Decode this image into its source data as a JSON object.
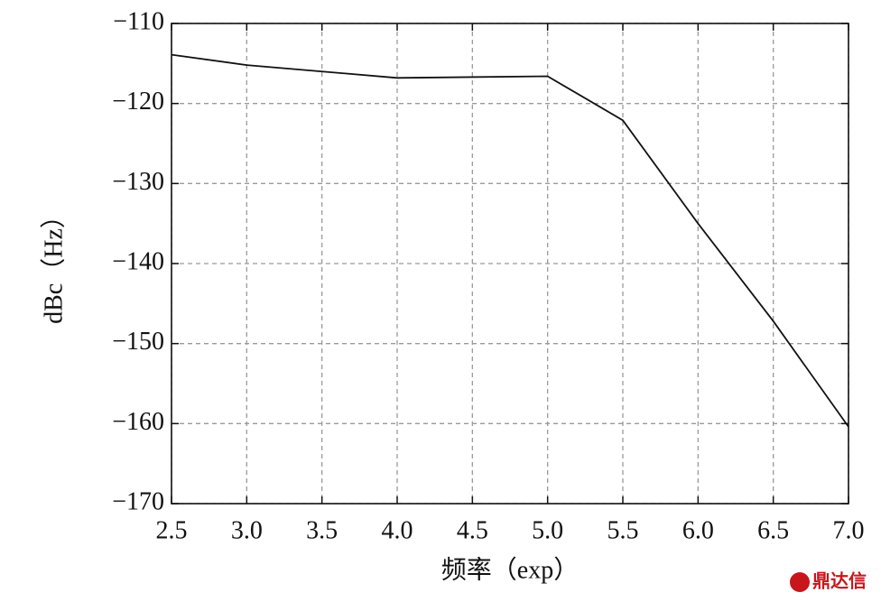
{
  "chart_data": {
    "type": "line",
    "xlabel": "频率（exp）",
    "ylabel": "dBc（Hz）",
    "watermark": "鼎达信",
    "x": [
      2.5,
      3.0,
      4.0,
      5.0,
      5.5,
      6.0,
      6.5,
      7.0
    ],
    "series": [
      {
        "color": "#111111",
        "values": [
          -113.9,
          -115.2,
          -116.8,
          -116.6,
          -122.1,
          -135.0,
          -147.2,
          -160.4
        ]
      }
    ],
    "xlim": [
      2.5,
      7.0
    ],
    "xticks": [
      2.5,
      {
        "value": 3,
        "label": "3.0"
      },
      3.5,
      {
        "value": 4,
        "label": "4.0"
      },
      4.5,
      {
        "value": 5,
        "label": "5.0"
      },
      5.5,
      {
        "value": 6,
        "label": "6.0"
      },
      6.5,
      {
        "value": 7,
        "label": "7.0"
      }
    ],
    "ylim": [
      -170,
      -110
    ],
    "yticks": [
      {
        "value": -170,
        "label": "−170"
      },
      {
        "value": -160,
        "label": "−160"
      },
      {
        "value": -150,
        "label": "−150"
      },
      {
        "value": -140,
        "label": "−140"
      },
      {
        "value": -130,
        "label": "−130"
      },
      {
        "value": -120,
        "label": "−120"
      },
      {
        "value": -110,
        "label": "−110"
      }
    ],
    "grid": true
  }
}
